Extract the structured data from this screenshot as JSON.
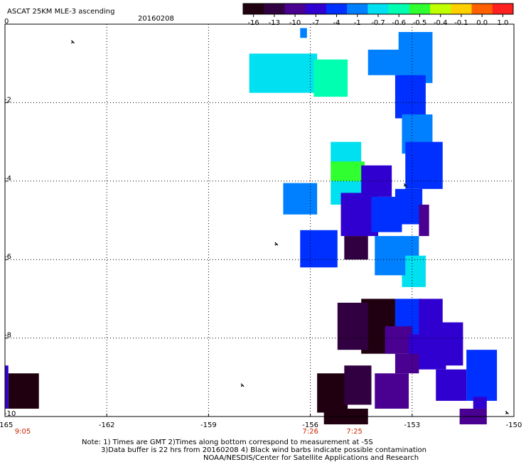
{
  "chart_data": {
    "type": "heatmap",
    "title": "ASCAT 25KM MLE-3 ascending",
    "date": "20160208",
    "xlim": [
      -165,
      -150
    ],
    "ylim": [
      -10,
      0
    ],
    "x_ticks": [
      "-165",
      "-162",
      "-159",
      "-156",
      "-153",
      "-150"
    ],
    "y_ticks": [
      "0",
      "-2",
      "-4",
      "-6",
      "-8",
      "-10"
    ],
    "grid": true,
    "colorbar": {
      "labels": [
        "-16",
        "-13",
        "-10",
        "-7",
        "-4",
        "-1",
        "-0.7",
        "-0.6",
        "-0.5",
        "-0.4",
        "-0.1",
        "0.0",
        "1.0"
      ],
      "colors": [
        "#200010",
        "#300040",
        "#4a0090",
        "#3000d0",
        "#0030ff",
        "#0080ff",
        "#00e0f0",
        "#00ffb0",
        "#30ff30",
        "#c0ff00",
        "#ffd000",
        "#ff6000",
        "#ff2020"
      ]
    },
    "pass_times": [
      {
        "lon": -165,
        "label": "9:05"
      },
      {
        "lon": -156,
        "label": "7:26"
      },
      {
        "lon": -154.7,
        "label": "7:25"
      }
    ],
    "cells": [
      {
        "lon0": -157.8,
        "lon1": -155.8,
        "lat0": -0.75,
        "lat1": -1.75,
        "v": "-0.7"
      },
      {
        "lon0": -155.9,
        "lon1": -154.9,
        "lat0": -0.9,
        "lat1": -1.85,
        "v": "-0.6"
      },
      {
        "lon0": -154.3,
        "lon1": -153.0,
        "lat0": -0.65,
        "lat1": -1.3,
        "v": "-1"
      },
      {
        "lon0": -153.4,
        "lon1": -152.4,
        "lat0": -0.2,
        "lat1": -1.5,
        "v": "-1"
      },
      {
        "lon0": -153.5,
        "lon1": -152.6,
        "lat0": -1.3,
        "lat1": -2.4,
        "v": "-4"
      },
      {
        "lon0": -156.3,
        "lon1": -156.1,
        "lat0": -0.1,
        "lat1": -0.35,
        "v": "-1"
      },
      {
        "lon0": -153.3,
        "lon1": -152.4,
        "lat0": -2.3,
        "lat1": -3.3,
        "v": "-1"
      },
      {
        "lon0": -153.2,
        "lon1": -152.1,
        "lat0": -3.0,
        "lat1": -4.2,
        "v": "-4"
      },
      {
        "lon0": -155.4,
        "lon1": -154.5,
        "lat0": -3.0,
        "lat1": -3.6,
        "v": "-0.7"
      },
      {
        "lon0": -155.4,
        "lon1": -154.4,
        "lat0": -3.5,
        "lat1": -4.0,
        "v": "-0.5"
      },
      {
        "lon0": -155.4,
        "lon1": -154.4,
        "lat0": -4.0,
        "lat1": -4.6,
        "v": "-0.7"
      },
      {
        "lon0": -154.5,
        "lon1": -153.6,
        "lat0": -3.6,
        "lat1": -4.4,
        "v": "-7"
      },
      {
        "lon0": -155.1,
        "lon1": -154.0,
        "lat0": -4.3,
        "lat1": -5.4,
        "v": "-7"
      },
      {
        "lon0": -154.2,
        "lon1": -153.3,
        "lat0": -4.4,
        "lat1": -5.3,
        "v": "-4"
      },
      {
        "lon0": -153.5,
        "lon1": -152.7,
        "lat0": -4.2,
        "lat1": -5.1,
        "v": "-4"
      },
      {
        "lon0": -152.8,
        "lon1": -152.5,
        "lat0": -4.6,
        "lat1": -5.4,
        "v": "-10"
      },
      {
        "lon0": -153.4,
        "lon1": -152.8,
        "lat0": -5.4,
        "lat1": -6.1,
        "v": "-1"
      },
      {
        "lon0": -153.3,
        "lon1": -152.6,
        "lat0": -5.9,
        "lat1": -6.7,
        "v": "-0.7"
      },
      {
        "lon0": -156.8,
        "lon1": -155.8,
        "lat0": -4.05,
        "lat1": -4.85,
        "v": "-1"
      },
      {
        "lon0": -156.3,
        "lon1": -155.2,
        "lat0": -5.25,
        "lat1": -6.2,
        "v": "-4"
      },
      {
        "lon0": -155.0,
        "lon1": -154.3,
        "lat0": -5.4,
        "lat1": -6.0,
        "v": "-13"
      },
      {
        "lon0": -154.1,
        "lon1": -153.2,
        "lat0": -5.4,
        "lat1": -6.4,
        "v": "-1"
      },
      {
        "lon0": -153.5,
        "lon1": -152.7,
        "lat0": -7.0,
        "lat1": -7.9,
        "v": "-4"
      },
      {
        "lon0": -152.8,
        "lon1": -152.1,
        "lat0": -7.0,
        "lat1": -8.1,
        "v": "-7"
      },
      {
        "lon0": -154.5,
        "lon1": -153.5,
        "lat0": -7.0,
        "lat1": -8.4,
        "v": "-16"
      },
      {
        "lon0": -155.2,
        "lon1": -154.3,
        "lat0": -7.1,
        "lat1": -8.3,
        "v": "-13"
      },
      {
        "lon0": -153.8,
        "lon1": -153.0,
        "lat0": -7.7,
        "lat1": -8.4,
        "v": "-10"
      },
      {
        "lon0": -153.1,
        "lon1": -152.0,
        "lat0": -7.9,
        "lat1": -8.8,
        "v": "-7"
      },
      {
        "lon0": -152.3,
        "lon1": -151.5,
        "lat0": -7.6,
        "lat1": -8.7,
        "v": "-7"
      },
      {
        "lon0": -153.5,
        "lon1": -152.8,
        "lat0": -8.4,
        "lat1": -8.9,
        "v": "-10"
      },
      {
        "lon0": -151.4,
        "lon1": -150.5,
        "lat0": -8.3,
        "lat1": -9.6,
        "v": "-4"
      },
      {
        "lon0": -152.3,
        "lon1": -151.4,
        "lat0": -8.8,
        "lat1": -9.6,
        "v": "-7"
      },
      {
        "lon0": -155.8,
        "lon1": -154.9,
        "lat0": -8.9,
        "lat1": -9.9,
        "v": "-16"
      },
      {
        "lon0": -155.0,
        "lon1": -154.2,
        "lat0": -8.7,
        "lat1": -9.7,
        "v": "-13"
      },
      {
        "lon0": -154.1,
        "lon1": -153.1,
        "lat0": -8.9,
        "lat1": -9.8,
        "v": "-10"
      },
      {
        "lon0": -155.6,
        "lon1": -154.3,
        "lat0": -9.8,
        "lat1": -10.2,
        "v": "-16"
      },
      {
        "lon0": -151.6,
        "lon1": -150.8,
        "lat0": -9.8,
        "lat1": -10.2,
        "v": "-10"
      },
      {
        "lon0": -151.2,
        "lon1": -150.8,
        "lat0": -9.5,
        "lat1": -9.8,
        "v": "-7"
      },
      {
        "lon0": -164.9,
        "lon1": -164.0,
        "lat0": -8.9,
        "lat1": -9.8,
        "v": "-16"
      },
      {
        "lon0": -165.0,
        "lon1": -164.9,
        "lat0": -8.7,
        "lat1": -9.8,
        "v": "-7"
      }
    ],
    "barbs": [
      {
        "lon": -153.2,
        "lat": -4.1
      },
      {
        "lon": -163.0,
        "lat": -0.45
      },
      {
        "lon": -157.0,
        "lat": -5.6
      },
      {
        "lon": -158.0,
        "lat": -9.2
      },
      {
        "lon": -150.2,
        "lat": -9.9
      }
    ]
  },
  "notes": {
    "line1": "Note: 1) Times are GMT 2)Times along bottom correspond to measurement at -5S",
    "line2": "3)Data buffer is 22 hrs from 20160208 4) Black wind barbs indicate possible contamination",
    "line3": "NOAA/NESDIS/Center for Satellite Applications and Research"
  }
}
